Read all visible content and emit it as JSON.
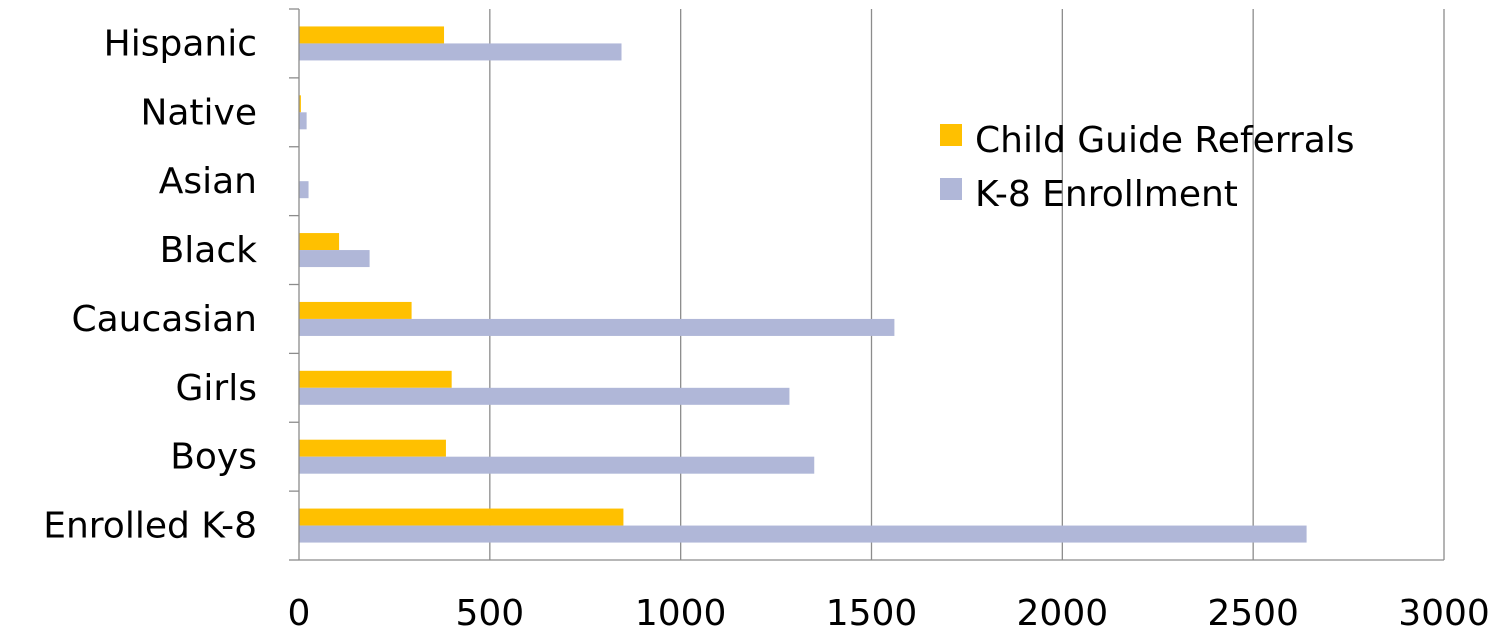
{
  "chart_data": {
    "type": "bar",
    "orientation": "horizontal",
    "categories": [
      "Hispanic",
      "Native",
      "Asian",
      "Black",
      "Caucasian",
      "Girls",
      "Boys",
      "Enrolled K-8"
    ],
    "series": [
      {
        "name": "Child Guide Referrals",
        "color": "#FFC000",
        "values": [
          380,
          5,
          0,
          105,
          295,
          400,
          385,
          850
        ]
      },
      {
        "name": "K-8 Enrollment",
        "color": "#B0B7D8",
        "values": [
          845,
          20,
          25,
          185,
          1560,
          1285,
          1350,
          2640
        ]
      }
    ],
    "xlim": [
      0,
      3000
    ],
    "xticks": [
      "0",
      "500",
      "1000",
      "1500",
      "2000",
      "2500",
      "3000"
    ],
    "grid": "vertical",
    "legend_position": "right"
  }
}
